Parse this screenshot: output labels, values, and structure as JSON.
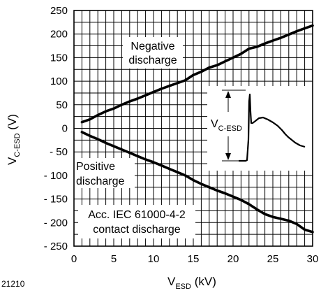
{
  "figure_code": "21210",
  "chart_data": {
    "type": "line",
    "xlabel": {
      "main": "V",
      "sub": "ESD",
      "unit": " (kV)"
    },
    "ylabel": {
      "main": "V",
      "sub": "C-ESD",
      "unit": " (V)"
    },
    "xlim": [
      0,
      30
    ],
    "ylim": [
      -250,
      250
    ],
    "x_ticks": [
      0,
      5,
      10,
      15,
      20,
      25,
      30
    ],
    "x_tick_labels": [
      "0",
      "5",
      "10",
      "15",
      "20",
      "25",
      "30"
    ],
    "y_ticks": [
      250,
      200,
      150,
      100,
      50,
      0,
      -50,
      -100,
      -150,
      -200,
      -250
    ],
    "y_tick_labels": [
      "250",
      "200",
      "150",
      "100",
      "50",
      "0",
      "- 50",
      "- 100",
      "- 150",
      "- 200",
      "- 250"
    ],
    "grid": true,
    "series": [
      {
        "name": "Negative discharge",
        "name_lines": [
          "Negative",
          "discharge"
        ],
        "x": [
          1,
          2,
          3,
          4,
          5,
          6,
          7,
          8,
          9,
          10,
          11,
          12,
          13,
          14,
          15,
          16,
          17,
          18,
          19,
          20,
          21,
          22,
          23,
          24,
          25,
          26,
          27,
          28,
          29,
          30
        ],
        "y": [
          13,
          19,
          28,
          36,
          42,
          50,
          57,
          63,
          70,
          77,
          84,
          90,
          96,
          102,
          113,
          120,
          129,
          134,
          142,
          150,
          158,
          169,
          173,
          180,
          186,
          192,
          199,
          206,
          212,
          218
        ]
      },
      {
        "name": "Positive discharge",
        "name_lines": [
          "Positive",
          "discharge"
        ],
        "x": [
          1,
          2,
          3,
          4,
          5,
          6,
          7,
          8,
          9,
          10,
          11,
          12,
          13,
          14,
          15,
          16,
          17,
          18,
          19,
          20,
          21,
          22,
          23,
          24,
          25,
          26,
          27,
          28,
          29,
          30
        ],
        "y": [
          -8,
          -16,
          -23,
          -31,
          -38,
          -45,
          -52,
          -59,
          -66,
          -72,
          -79,
          -86,
          -93,
          -100,
          -110,
          -118,
          -125,
          -132,
          -138,
          -145,
          -152,
          -161,
          -172,
          -182,
          -188,
          -192,
          -196,
          -203,
          -215,
          -220
        ]
      }
    ],
    "annotations": [
      {
        "lines": [
          "Acc. IEC 61000-4-2",
          "contact discharge"
        ]
      }
    ],
    "inset": {
      "label": {
        "main": "V",
        "sub": "C-ESD"
      }
    }
  }
}
